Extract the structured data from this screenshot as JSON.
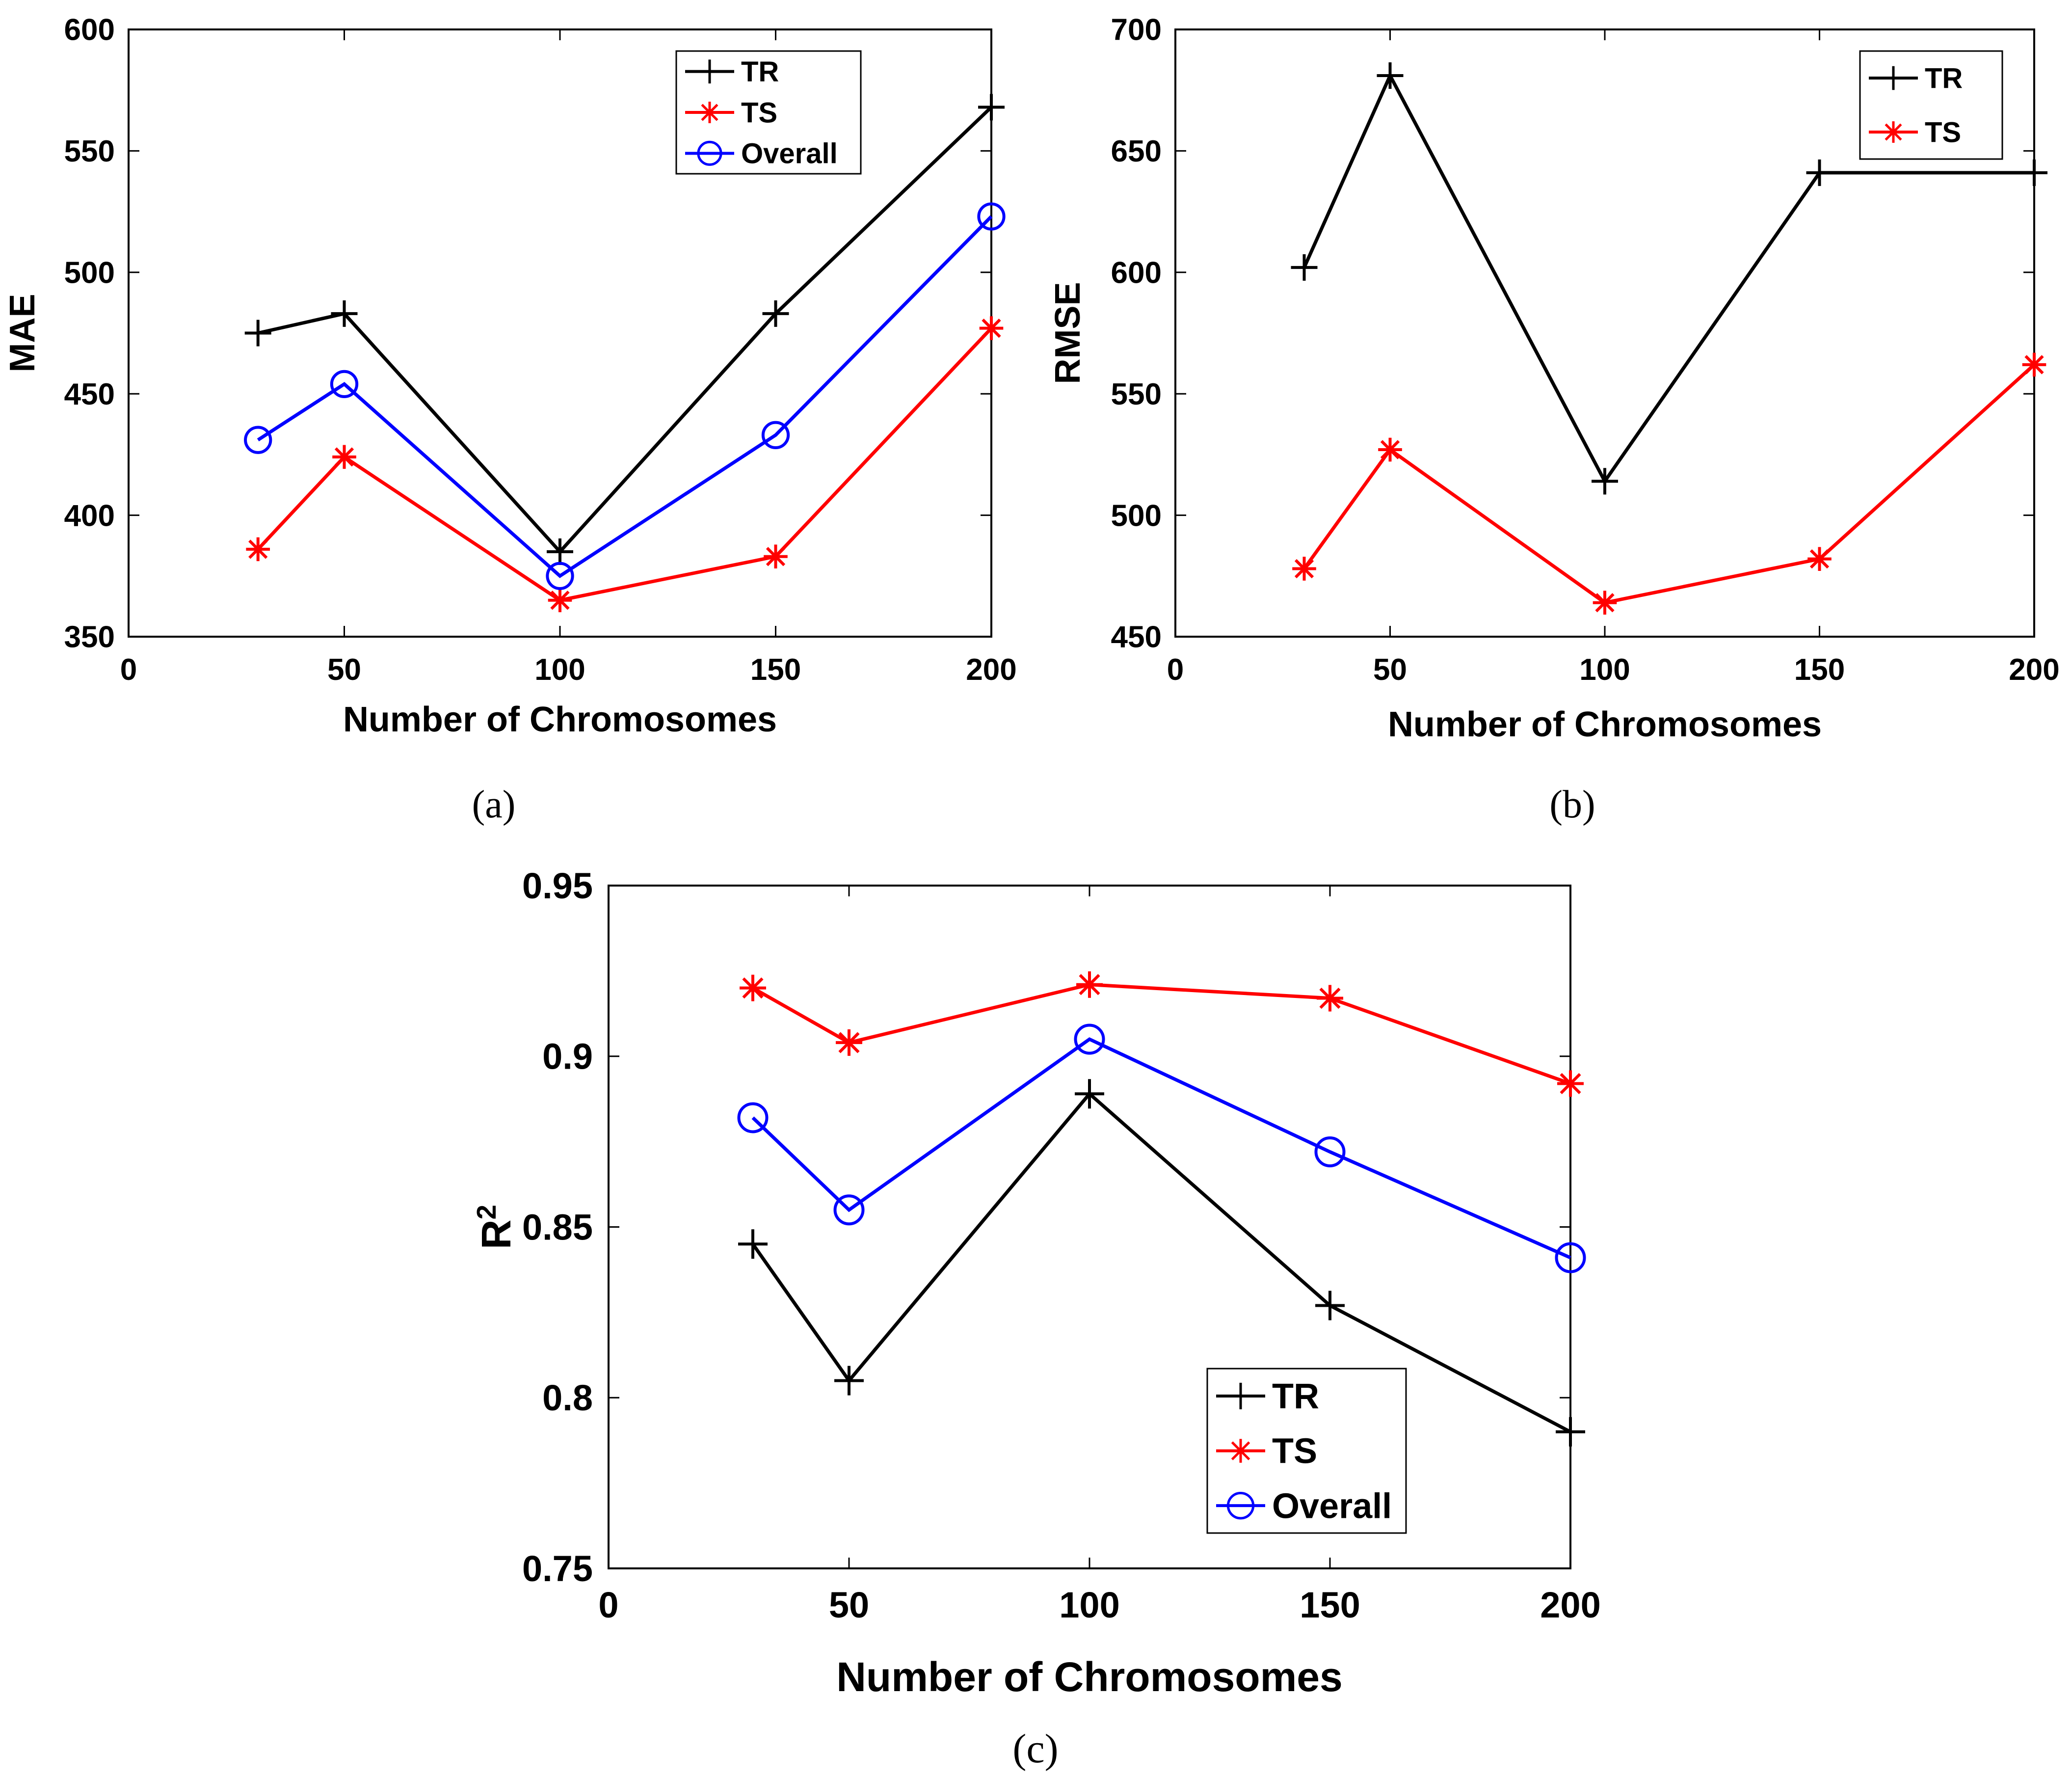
{
  "chart_data": [
    {
      "type": "line",
      "panel_label": "(a)",
      "title": "",
      "xlabel": "Number of Chromosomes",
      "ylabel": "MAE",
      "xlim": [
        0,
        200
      ],
      "ylim": [
        350,
        600
      ],
      "xticks": [
        0,
        50,
        100,
        150,
        200
      ],
      "yticks": [
        350,
        400,
        450,
        500,
        550,
        600
      ],
      "grid": false,
      "legend_position": "top-right",
      "x": [
        30,
        50,
        100,
        150,
        200
      ],
      "series": [
        {
          "name": "TR",
          "color": "#000000",
          "marker": "plus",
          "values": [
            475,
            483,
            385,
            483,
            568
          ]
        },
        {
          "name": "TS",
          "color": "#ff0000",
          "marker": "star",
          "values": [
            386,
            424,
            365,
            383,
            477
          ]
        },
        {
          "name": "Overall",
          "color": "#0000ff",
          "marker": "circle",
          "values": [
            431,
            454,
            375,
            433,
            523
          ]
        }
      ]
    },
    {
      "type": "line",
      "panel_label": "(b)",
      "title": "",
      "xlabel": "Number of Chromosomes",
      "ylabel": "RMSE",
      "xlim": [
        0,
        200
      ],
      "ylim": [
        450,
        700
      ],
      "xticks": [
        0,
        50,
        100,
        150,
        200
      ],
      "yticks": [
        450,
        500,
        550,
        600,
        650,
        700
      ],
      "grid": false,
      "legend_position": "top-right",
      "x": [
        30,
        50,
        100,
        150,
        200
      ],
      "series": [
        {
          "name": "TR",
          "color": "#000000",
          "marker": "plus",
          "values": [
            602,
            681,
            514,
            641,
            641
          ]
        },
        {
          "name": "TS",
          "color": "#ff0000",
          "marker": "star",
          "values": [
            478,
            527,
            464,
            482,
            562
          ]
        }
      ]
    },
    {
      "type": "line",
      "panel_label": "(c)",
      "title": "",
      "xlabel": "Number of Chromosomes",
      "ylabel": "R",
      "ylabel_superscript": "2",
      "xlim": [
        0,
        200
      ],
      "ylim": [
        0.75,
        0.95
      ],
      "xticks": [
        0,
        50,
        100,
        150,
        200
      ],
      "yticks": [
        0.75,
        0.8,
        0.85,
        0.9,
        0.95
      ],
      "grid": false,
      "legend_position": "bottom-right",
      "x": [
        30,
        50,
        100,
        150,
        200
      ],
      "series": [
        {
          "name": "TR",
          "color": "#000000",
          "marker": "plus",
          "values": [
            0.845,
            0.805,
            0.889,
            0.827,
            0.79
          ]
        },
        {
          "name": "TS",
          "color": "#ff0000",
          "marker": "star",
          "values": [
            0.92,
            0.904,
            0.921,
            0.917,
            0.892
          ]
        },
        {
          "name": "Overall",
          "color": "#0000ff",
          "marker": "circle",
          "values": [
            0.882,
            0.855,
            0.905,
            0.872,
            0.841
          ]
        }
      ]
    }
  ]
}
